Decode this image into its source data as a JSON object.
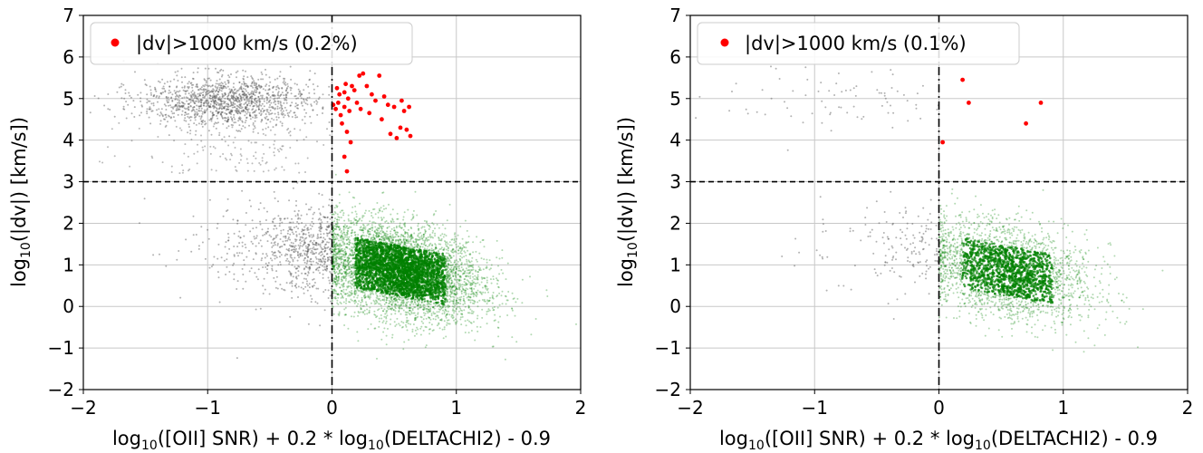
{
  "chart_data": [
    {
      "type": "scatter",
      "xlabel": "log10([OII] SNR) + 0.2 * log10(DELTACHI2) - 0.9",
      "ylabel": "log10(|dv|) [km/s]",
      "xlim": [
        -2,
        2
      ],
      "ylim": [
        -2,
        7
      ],
      "xticks": [
        -2,
        -1,
        0,
        1,
        2
      ],
      "yticks": [
        -2,
        -1,
        0,
        1,
        2,
        3,
        4,
        5,
        6,
        7
      ],
      "grid": true,
      "legend": {
        "placement": "top-left",
        "entries": [
          "|dv|>1000 km/s (0.2%)"
        ]
      },
      "reference_lines": {
        "horizontal_y": 3,
        "vertical_x": 0
      },
      "colors": {
        "failed": "#ff0000",
        "good": "#008000",
        "rejected": "#555555"
      },
      "series": [
        {
          "name": "|dv|>1000 km/s (0.2%)",
          "x": [
            0.01,
            0.03,
            0.04,
            0.05,
            0.06,
            0.07,
            0.08,
            0.1,
            0.1,
            0.11,
            0.12,
            0.13,
            0.14,
            0.15,
            0.16,
            0.18,
            0.2,
            0.22,
            0.23,
            0.25,
            0.28,
            0.3,
            0.32,
            0.35,
            0.38,
            0.4,
            0.42,
            0.45,
            0.47,
            0.5,
            0.52,
            0.55,
            0.56,
            0.58,
            0.6,
            0.62,
            0.63,
            0.1,
            0.12
          ],
          "y": [
            4.85,
            4.75,
            5.25,
            4.9,
            5.1,
            4.6,
            4.4,
            5.15,
            4.8,
            5.35,
            4.2,
            5.0,
            4.7,
            3.95,
            5.3,
            5.2,
            4.9,
            5.55,
            4.75,
            5.6,
            5.3,
            4.65,
            5.1,
            4.95,
            5.55,
            4.5,
            5.05,
            4.85,
            4.15,
            4.8,
            4.05,
            4.3,
            4.95,
            4.7,
            4.25,
            4.8,
            4.1,
            3.6,
            3.25
          ]
        }
      ]
    },
    {
      "type": "scatter",
      "xlabel": "log10([OII] SNR) + 0.2 * log10(DELTACHI2) - 0.9",
      "ylabel": "log10(|dv|) [km/s]",
      "xlim": [
        -2,
        2
      ],
      "ylim": [
        -2,
        7
      ],
      "xticks": [
        -2,
        -1,
        0,
        1,
        2
      ],
      "yticks": [
        -2,
        -1,
        0,
        1,
        2,
        3,
        4,
        5,
        6,
        7
      ],
      "grid": true,
      "legend": {
        "placement": "top-left",
        "entries": [
          "|dv|>1000 km/s (0.1%)"
        ]
      },
      "reference_lines": {
        "horizontal_y": 3,
        "vertical_x": 0
      },
      "colors": {
        "failed": "#ff0000",
        "good": "#008000",
        "rejected": "#555555"
      },
      "series": [
        {
          "name": "|dv|>1000 km/s (0.1%)",
          "x": [
            0.03,
            0.19,
            0.24,
            0.7,
            0.82
          ],
          "y": [
            3.95,
            5.45,
            4.9,
            4.4,
            4.9
          ]
        }
      ]
    }
  ]
}
